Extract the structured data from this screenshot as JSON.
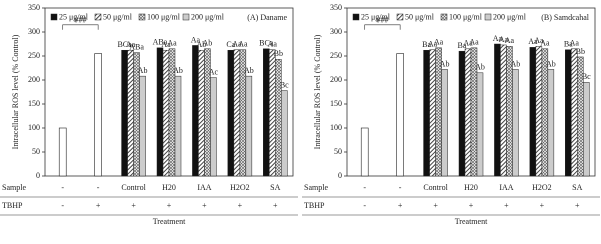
{
  "chart_data": [
    {
      "type": "bar",
      "title": "(A) Daname",
      "ylabel": "Intracellular ROS level (% Control)",
      "xlabel": "Treatment",
      "row_labels": [
        "Sample",
        "TBHP"
      ],
      "categories": [
        "-",
        "-",
        "Control",
        "H20",
        "IAA",
        "H2O2",
        "SA"
      ],
      "tbhp": [
        "-",
        "+",
        "+",
        "+",
        "+",
        "+",
        "+"
      ],
      "ylim": [
        0,
        350
      ],
      "yticks": [
        0,
        50,
        100,
        150,
        200,
        250,
        300,
        350
      ],
      "annotation": "###",
      "reference": {
        "color": "#ffffff",
        "values": [
          100,
          255,
          null,
          null,
          null,
          null,
          null
        ]
      },
      "series": [
        {
          "name": "25 μg/ml",
          "color": "#111111",
          "pattern": "solid",
          "values": [
            null,
            null,
            262,
            267,
            272,
            262,
            265
          ],
          "letters": [
            null,
            null,
            "BCa",
            "ABa",
            "Aa",
            "Ca",
            "BCa"
          ]
        },
        {
          "name": "50 μg/ml",
          "color": "#444444",
          "pattern": "hatch",
          "values": [
            null,
            null,
            262,
            262,
            262,
            263,
            263
          ],
          "letters": [
            null,
            null,
            "Aa",
            "Aa",
            "Ab",
            "Aa",
            "Aa"
          ]
        },
        {
          "name": "100 μg/ml",
          "color": "#666666",
          "pattern": "cross",
          "values": [
            null,
            null,
            257,
            265,
            265,
            263,
            243
          ],
          "letters": [
            null,
            null,
            "ABa",
            "Aa",
            "Ab",
            "Aa",
            "Bb"
          ]
        },
        {
          "name": "200 μg/ml",
          "color": "#cccccc",
          "pattern": "solid",
          "values": [
            null,
            null,
            208,
            208,
            205,
            208,
            178
          ],
          "letters": [
            null,
            null,
            "Ab",
            "Ab",
            "Ac",
            "Ab",
            "Bc"
          ]
        }
      ]
    },
    {
      "type": "bar",
      "title": "(B) Samdcahal",
      "ylabel": "Intracellular ROS level (% Control)",
      "xlabel": "Treatment",
      "row_labels": [
        "Sample",
        "TBHP"
      ],
      "categories": [
        "-",
        "-",
        "Control",
        "H20",
        "IAA",
        "H2O2",
        "SA"
      ],
      "tbhp": [
        "-",
        "+",
        "+",
        "+",
        "+",
        "+",
        "+"
      ],
      "ylim": [
        0,
        350
      ],
      "yticks": [
        0,
        50,
        100,
        150,
        200,
        250,
        300,
        350
      ],
      "annotation": "###",
      "reference": {
        "color": "#ffffff",
        "values": [
          100,
          255,
          null,
          null,
          null,
          null,
          null
        ]
      },
      "series": [
        {
          "name": "25 μg/ml",
          "color": "#111111",
          "pattern": "solid",
          "values": [
            null,
            null,
            262,
            260,
            275,
            268,
            263
          ],
          "letters": [
            null,
            null,
            "Ba",
            "Ba",
            "Aa",
            "Aa",
            "Ba"
          ]
        },
        {
          "name": "50 μg/ml",
          "color": "#444444",
          "pattern": "hatch",
          "values": [
            null,
            null,
            263,
            265,
            273,
            270,
            265
          ],
          "letters": [
            null,
            null,
            "Aa",
            "Aa",
            "Aa",
            "Aa",
            "Aa"
          ]
        },
        {
          "name": "100 μg/ml",
          "color": "#666666",
          "pattern": "cross",
          "values": [
            null,
            null,
            267,
            267,
            270,
            265,
            248
          ],
          "letters": [
            null,
            null,
            "Aa",
            "Aa",
            "Aa",
            "Aa",
            "Bb"
          ]
        },
        {
          "name": "200 μg/ml",
          "color": "#cccccc",
          "pattern": "solid",
          "values": [
            null,
            null,
            222,
            215,
            222,
            222,
            195
          ],
          "letters": [
            null,
            null,
            "Ab",
            "Ab",
            "Ab",
            "Ab",
            "Bc"
          ]
        }
      ]
    }
  ]
}
